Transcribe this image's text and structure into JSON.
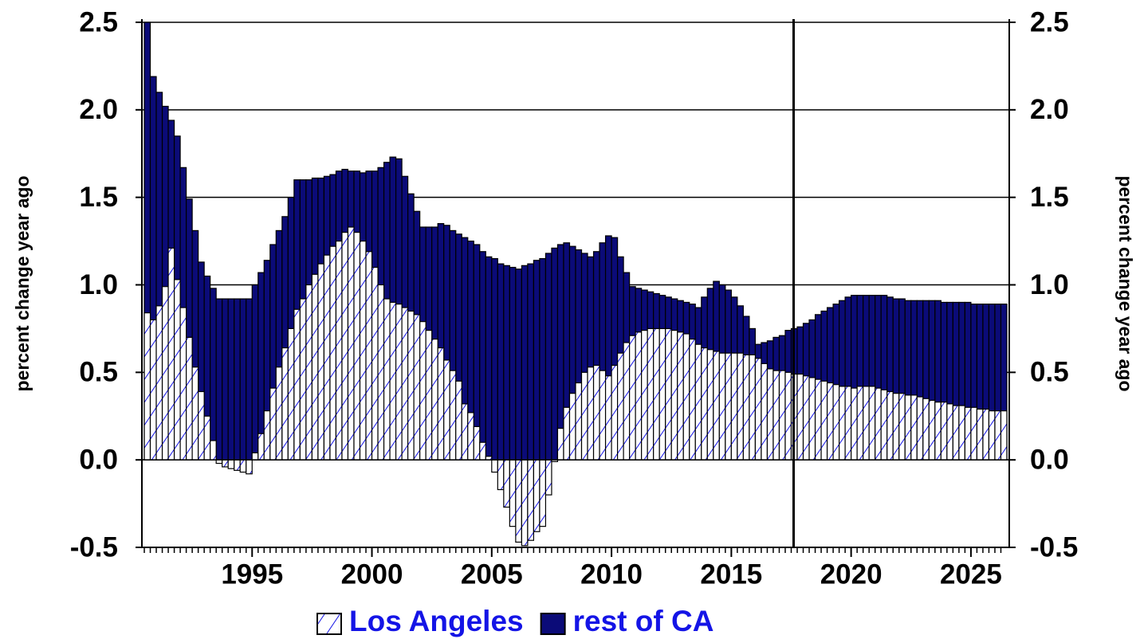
{
  "chart_data": {
    "type": "bar",
    "ylabel": "percent change year ago",
    "y2label": "percent change year ago",
    "x": [
      1990.5,
      1990.75,
      1991,
      1991.25,
      1991.5,
      1991.75,
      1992,
      1992.25,
      1992.5,
      1992.75,
      1993,
      1993.25,
      1993.5,
      1993.75,
      1994,
      1994.25,
      1994.5,
      1994.75,
      1995,
      1995.25,
      1995.5,
      1995.75,
      1996,
      1996.25,
      1996.5,
      1996.75,
      1997,
      1997.25,
      1997.5,
      1997.75,
      1998,
      1998.25,
      1998.5,
      1998.75,
      1999,
      1999.25,
      1999.5,
      1999.75,
      2000,
      2000.25,
      2000.5,
      2000.75,
      2001,
      2001.25,
      2001.5,
      2001.75,
      2002,
      2002.25,
      2002.5,
      2002.75,
      2003,
      2003.25,
      2003.5,
      2003.75,
      2004,
      2004.25,
      2004.5,
      2004.75,
      2005,
      2005.25,
      2005.5,
      2005.75,
      2006,
      2006.25,
      2006.5,
      2006.75,
      2007,
      2007.25,
      2007.5,
      2007.75,
      2008,
      2008.25,
      2008.5,
      2008.75,
      2009,
      2009.25,
      2009.5,
      2009.75,
      2010,
      2010.25,
      2010.5,
      2010.75,
      2011,
      2011.25,
      2011.5,
      2011.75,
      2012,
      2012.25,
      2012.5,
      2012.75,
      2013,
      2013.25,
      2013.5,
      2013.75,
      2014,
      2014.25,
      2014.5,
      2014.75,
      2015,
      2015.25,
      2015.5,
      2015.75,
      2016,
      2016.25,
      2016.5,
      2016.75,
      2017,
      2017.25,
      2017.5,
      2017.75,
      2018,
      2018.25,
      2018.5,
      2018.75,
      2019,
      2019.25,
      2019.5,
      2019.75,
      2020,
      2020.25,
      2020.5,
      2020.75,
      2021,
      2021.25,
      2021.5,
      2021.75,
      2022,
      2022.25,
      2022.5,
      2022.75,
      2023,
      2023.25,
      2023.5,
      2023.75,
      2024,
      2024.25,
      2024.5,
      2024.75,
      2025,
      2025.25,
      2025.5,
      2025.75,
      2026,
      2026.25
    ],
    "series": [
      {
        "name": "rest of CA",
        "color": "#0b0b78",
        "values": [
          2.5,
          2.19,
          2.1,
          2.02,
          1.94,
          1.85,
          1.67,
          1.49,
          1.31,
          1.13,
          1.05,
          0.98,
          0.92,
          0.92,
          0.92,
          0.92,
          0.92,
          0.92,
          1.0,
          1.07,
          1.14,
          1.23,
          1.31,
          1.39,
          1.5,
          1.6,
          1.6,
          1.6,
          1.61,
          1.61,
          1.62,
          1.63,
          1.65,
          1.66,
          1.65,
          1.65,
          1.64,
          1.65,
          1.65,
          1.67,
          1.7,
          1.73,
          1.72,
          1.62,
          1.52,
          1.42,
          1.33,
          1.33,
          1.33,
          1.35,
          1.34,
          1.31,
          1.29,
          1.27,
          1.25,
          1.23,
          1.19,
          1.16,
          1.15,
          1.12,
          1.11,
          1.1,
          1.09,
          1.11,
          1.12,
          1.14,
          1.15,
          1.18,
          1.21,
          1.23,
          1.24,
          1.22,
          1.2,
          1.18,
          1.16,
          1.19,
          1.24,
          1.28,
          1.27,
          1.16,
          1.07,
          0.99,
          0.98,
          0.97,
          0.96,
          0.95,
          0.94,
          0.93,
          0.92,
          0.91,
          0.9,
          0.89,
          0.87,
          0.93,
          0.98,
          1.02,
          1.0,
          0.97,
          0.93,
          0.88,
          0.82,
          0.75,
          0.66,
          0.67,
          0.68,
          0.7,
          0.71,
          0.74,
          0.75,
          0.76,
          0.78,
          0.8,
          0.83,
          0.85,
          0.87,
          0.89,
          0.91,
          0.93,
          0.94,
          0.94,
          0.94,
          0.94,
          0.94,
          0.94,
          0.93,
          0.92,
          0.92,
          0.91,
          0.91,
          0.91,
          0.91,
          0.91,
          0.91,
          0.9,
          0.9,
          0.9,
          0.9,
          0.9,
          0.89,
          0.89,
          0.89,
          0.89,
          0.89,
          0.89
        ]
      },
      {
        "name": "Los Angeles",
        "color": "#ffffff",
        "hatch_color": "#1414e6",
        "values": [
          0.84,
          0.8,
          0.88,
          0.99,
          1.21,
          1.03,
          0.87,
          0.7,
          0.53,
          0.39,
          0.25,
          0.11,
          -0.02,
          -0.04,
          -0.05,
          -0.06,
          -0.07,
          -0.08,
          0.04,
          0.15,
          0.28,
          0.41,
          0.53,
          0.64,
          0.75,
          0.86,
          0.92,
          1.0,
          1.06,
          1.12,
          1.17,
          1.22,
          1.25,
          1.3,
          1.33,
          1.3,
          1.25,
          1.19,
          1.1,
          1.0,
          0.92,
          0.9,
          0.89,
          0.87,
          0.85,
          0.83,
          0.79,
          0.74,
          0.69,
          0.64,
          0.57,
          0.51,
          0.45,
          0.32,
          0.27,
          0.19,
          0.1,
          0.02,
          -0.07,
          -0.17,
          -0.27,
          -0.38,
          -0.47,
          -0.49,
          -0.46,
          -0.41,
          -0.38,
          -0.2,
          -0.01,
          0.18,
          0.3,
          0.38,
          0.44,
          0.5,
          0.53,
          0.54,
          0.51,
          0.48,
          0.54,
          0.61,
          0.67,
          0.71,
          0.73,
          0.74,
          0.75,
          0.75,
          0.75,
          0.75,
          0.74,
          0.73,
          0.72,
          0.69,
          0.66,
          0.64,
          0.63,
          0.62,
          0.61,
          0.61,
          0.61,
          0.61,
          0.6,
          0.6,
          0.58,
          0.55,
          0.52,
          0.51,
          0.51,
          0.5,
          0.49,
          0.49,
          0.48,
          0.47,
          0.46,
          0.45,
          0.44,
          0.43,
          0.42,
          0.42,
          0.41,
          0.42,
          0.42,
          0.42,
          0.41,
          0.4,
          0.39,
          0.38,
          0.38,
          0.37,
          0.37,
          0.36,
          0.35,
          0.34,
          0.33,
          0.33,
          0.32,
          0.31,
          0.31,
          0.3,
          0.3,
          0.29,
          0.29,
          0.28,
          0.28,
          0.28
        ]
      }
    ],
    "bar_width": 0.25,
    "xlim": [
      1990.4,
      2026.6
    ],
    "xticks": [
      1995,
      2000,
      2005,
      2010,
      2015,
      2020,
      2025
    ],
    "ylim": [
      -0.5,
      2.5
    ],
    "yticks": [
      {
        "value": -0.5,
        "label": "-0.5"
      },
      {
        "value": 0,
        "label": "0.0"
      },
      0.5,
      {
        "value": 1,
        "label": "1.0"
      },
      1.5,
      {
        "value": 2,
        "label": "2.0"
      },
      2.5
    ],
    "y2lim": [
      -0.5,
      2.5
    ],
    "y2ticks": [
      {
        "value": -0.5,
        "label": "-0.5"
      },
      {
        "value": 0,
        "label": "0.0"
      },
      0.5,
      {
        "value": 1,
        "label": "1.0"
      },
      1.5,
      {
        "value": 2,
        "label": "2.0"
      },
      2.5
    ],
    "vline": 2017.6,
    "grid": true
  }
}
